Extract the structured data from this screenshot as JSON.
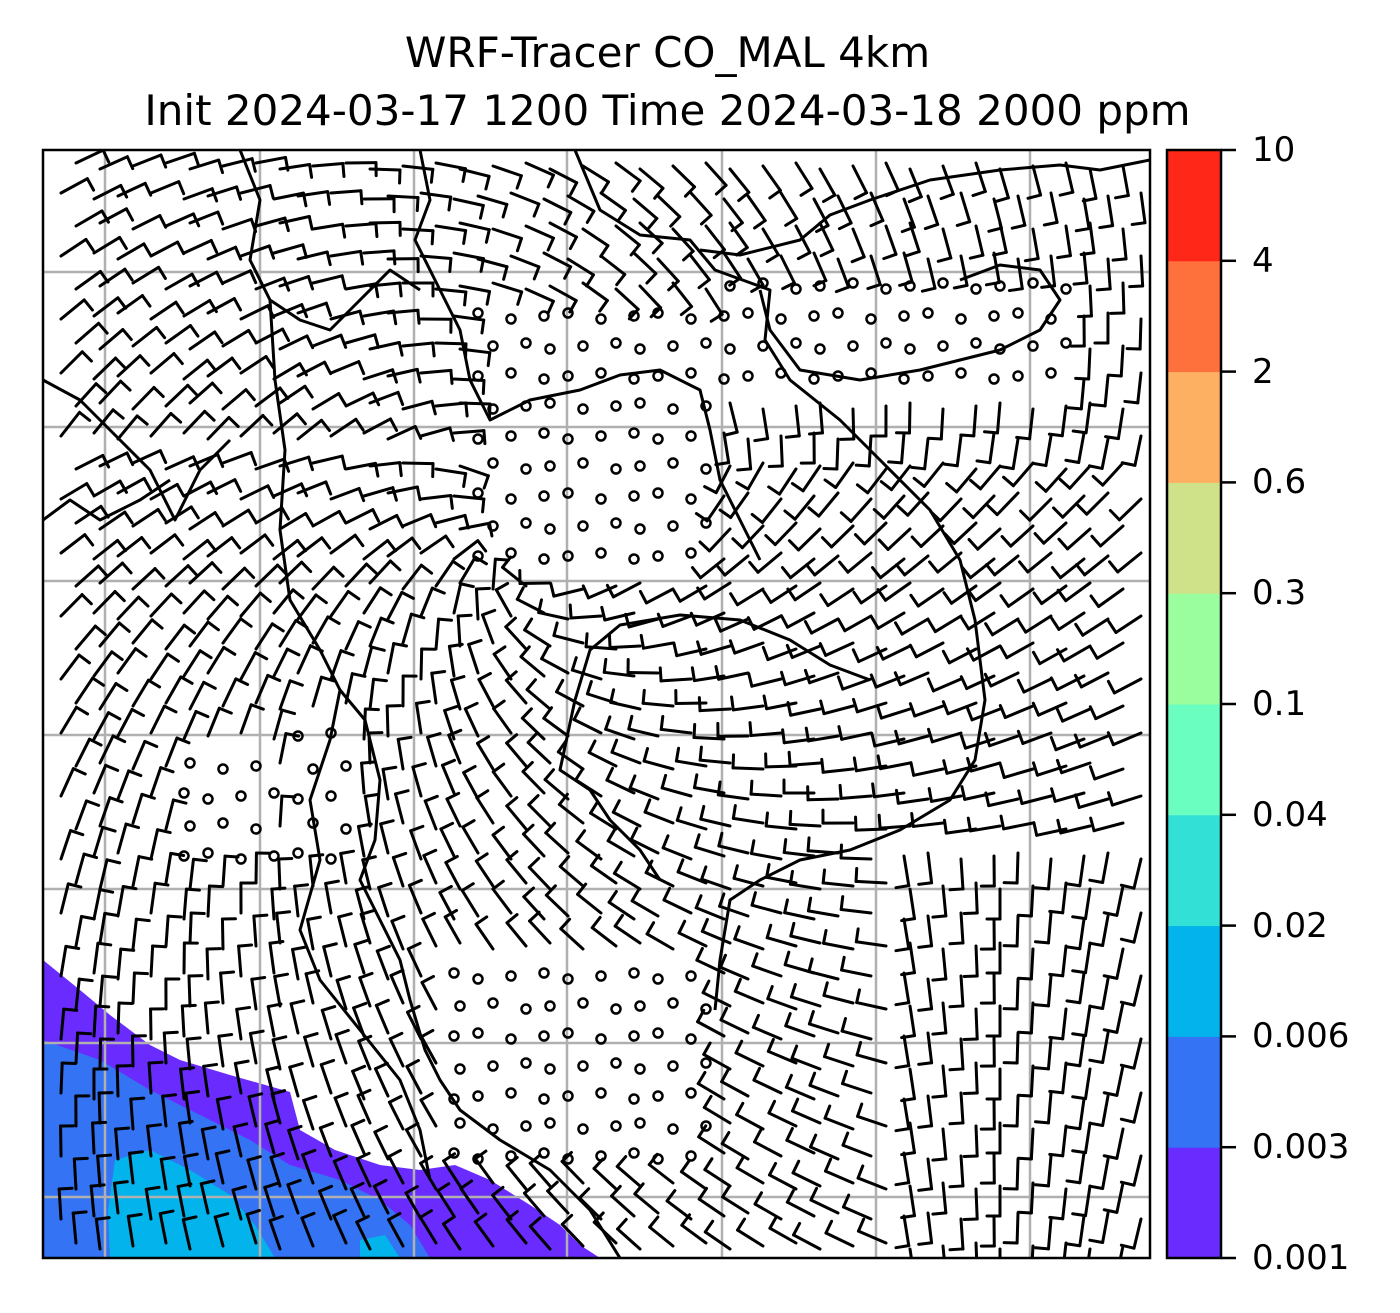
{
  "title": {
    "line1": "WRF-Tracer CO_MAL 4km",
    "line2": "Init 2024-03-17 1200 Time 2024-03-18 2000 ppm"
  },
  "colorbar": {
    "levels": [
      "0.001",
      "0.003",
      "0.006",
      "0.02",
      "0.04",
      "0.1",
      "0.3",
      "0.6",
      "2",
      "4",
      "10"
    ],
    "colors": [
      "#6a2bff",
      "#3373f4",
      "#02b4eb",
      "#32e0d6",
      "#6afec0",
      "#9afe9e",
      "#cfe189",
      "#feb062",
      "#fe713c",
      "#ff2818"
    ]
  },
  "map": {
    "gridline_color": "#b0b0b0",
    "coastline_color": "#000000",
    "barb_color": "#000000"
  }
}
